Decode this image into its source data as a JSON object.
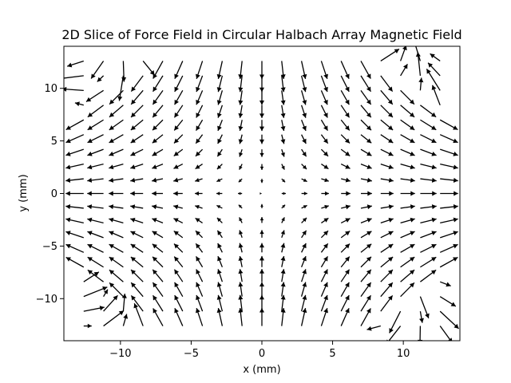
{
  "chart_data": {
    "type": "quiver",
    "title": "2D Slice of Force Field in Circular Halbach Array Magnetic Field",
    "xlabel": "x (mm)",
    "ylabel": "y (mm)",
    "xlim": [
      -14,
      14
    ],
    "ylim": [
      -14,
      14
    ],
    "xticks": [
      -10,
      -5,
      0,
      5,
      10
    ],
    "yticks": [
      -10,
      -5,
      0,
      5,
      10
    ],
    "xtick_labels": [
      "−10",
      "−5",
      "0",
      "5",
      "10"
    ],
    "ytick_labels": [
      "−10",
      "−5",
      "0",
      "5",
      "10"
    ],
    "grid": false,
    "grid_points": 19,
    "grid_span": [
      -12.6,
      12.6
    ],
    "field_model": "radial-quadrupole force with amplification near outer edge",
    "arrow_color": "#000000"
  }
}
